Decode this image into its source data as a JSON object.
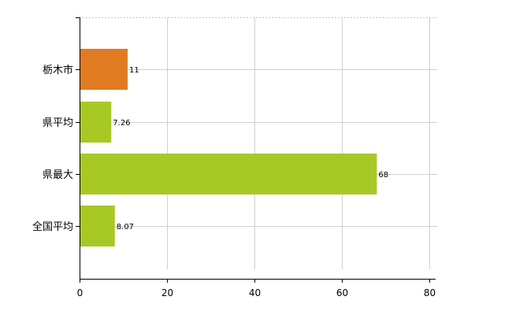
{
  "chart_data": {
    "type": "bar",
    "orientation": "horizontal",
    "categories": [
      "栃木市",
      "県平均",
      "県最大",
      "全国平均"
    ],
    "values": [
      11,
      7.26,
      68,
      8.07
    ],
    "value_labels": [
      "11",
      "7.26",
      "68",
      "8.07"
    ],
    "bar_colors": [
      "#e07b22",
      "#a8c826",
      "#a8c826",
      "#a8c826"
    ],
    "xlim": [
      0,
      80
    ],
    "x_ticks": [
      0,
      20,
      40,
      60,
      80
    ],
    "title": "",
    "xlabel": "",
    "ylabel": "",
    "grid": true,
    "legend": "none"
  }
}
